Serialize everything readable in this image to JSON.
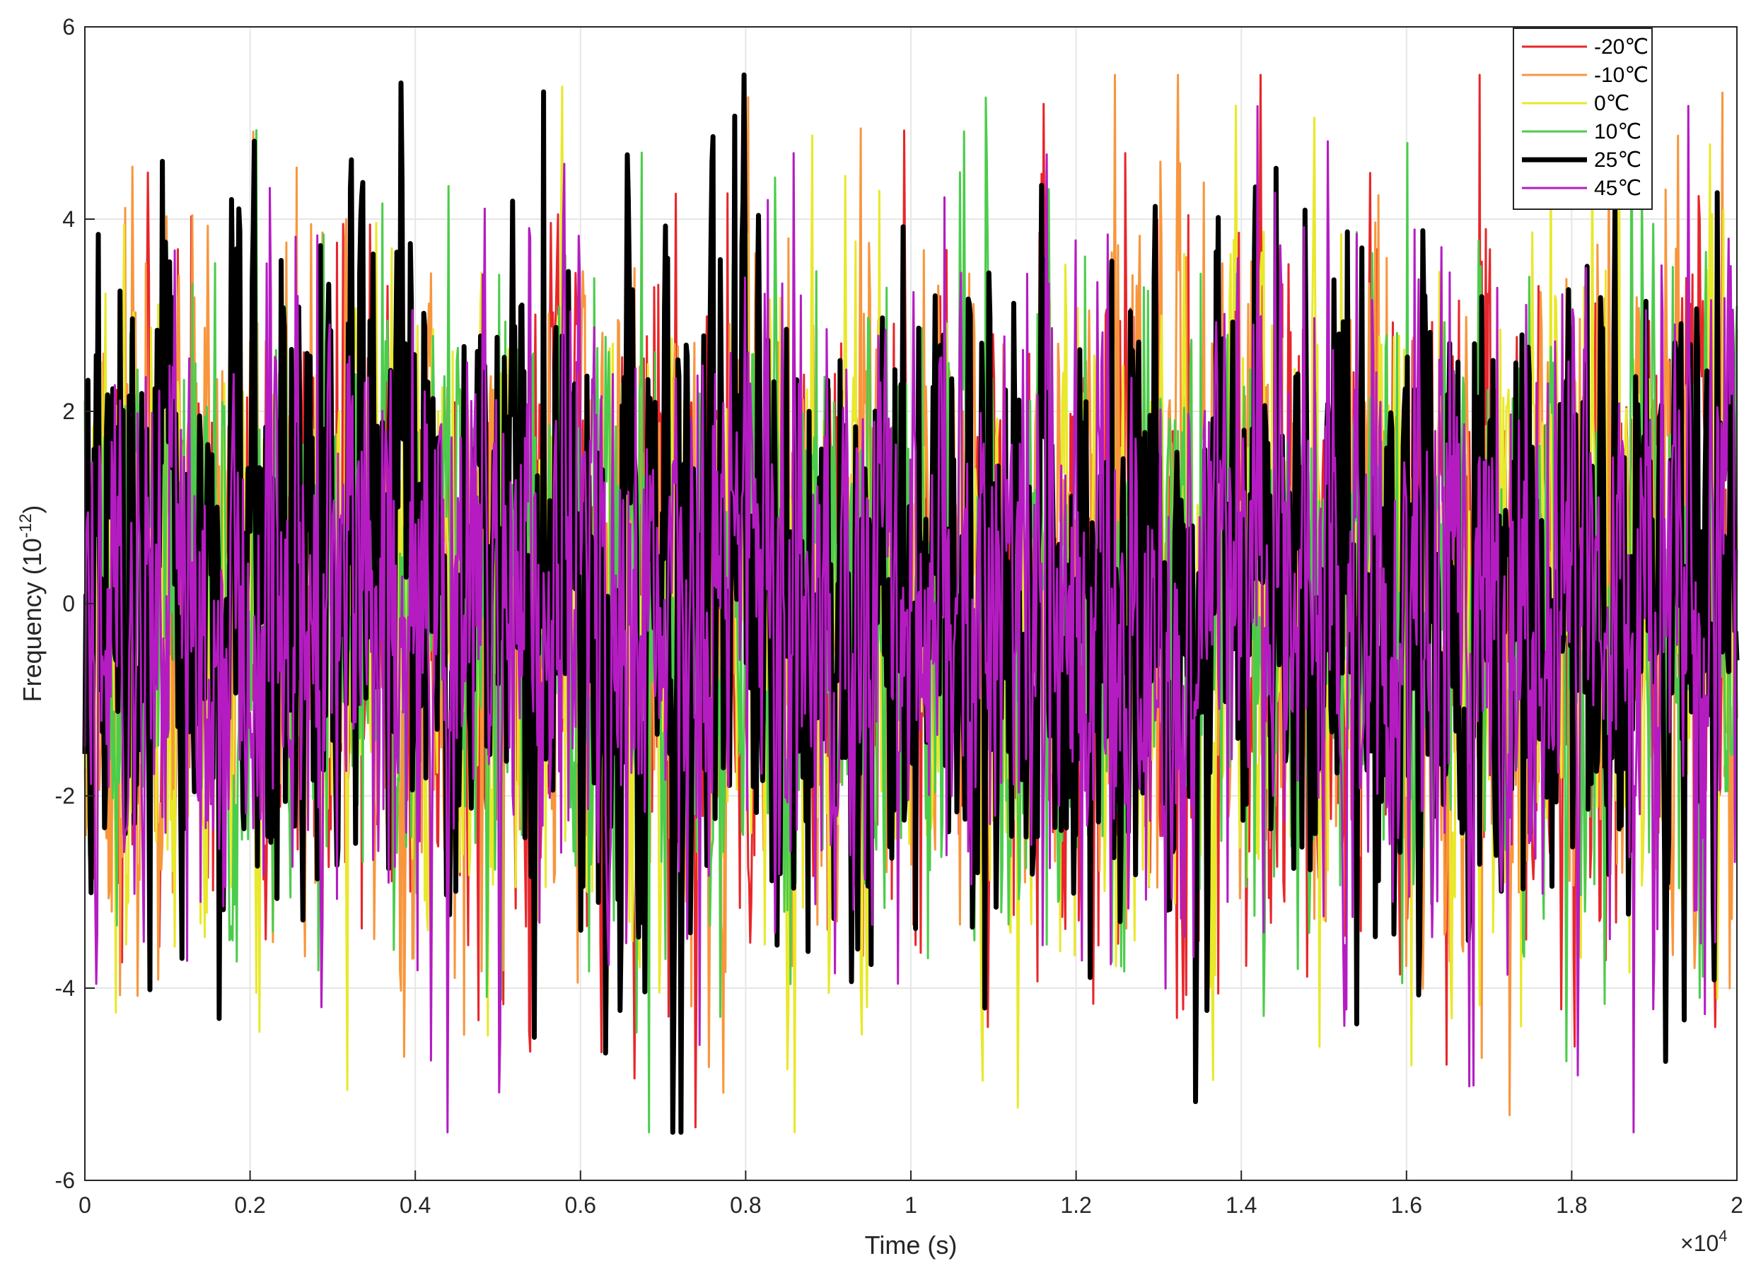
{
  "chart_data": {
    "type": "line",
    "xlabel": "Time (s)",
    "ylabel": "Frequency (10",
    "ylabel_superscript": "-12",
    "ylabel_close": ")",
    "x_multiplier": "×10",
    "x_multiplier_exp": "4",
    "xlim": [
      0,
      2
    ],
    "ylim": [
      -6,
      6
    ],
    "x_ticks": [
      0,
      0.2,
      0.4,
      0.6,
      0.8,
      1,
      1.2,
      1.4,
      1.6,
      1.8,
      2
    ],
    "x_tick_labels": [
      "0",
      "0.2",
      "0.4",
      "0.6",
      "0.8",
      "1",
      "1.2",
      "1.4",
      "1.6",
      "1.8",
      "2"
    ],
    "y_ticks": [
      -6,
      -4,
      -2,
      0,
      2,
      4,
      6
    ],
    "y_tick_labels": [
      "-6",
      "-4",
      "-2",
      "0",
      "2",
      "4",
      "6"
    ],
    "grid": true,
    "legend_position": "top-right",
    "samples_per_series": 1600,
    "noise_model": {
      "points": 1600,
      "spread": 1.55,
      "peak_range": [
        -5.5,
        5.5
      ]
    },
    "series": [
      {
        "name": "-20℃",
        "color": "#e8262a",
        "line_width": 3,
        "seed": 11
      },
      {
        "name": "-10℃",
        "color": "#f8963c",
        "line_width": 3,
        "seed": 23
      },
      {
        "name": "0℃",
        "color": "#e9e82a",
        "line_width": 3,
        "seed": 37
      },
      {
        "name": "10℃",
        "color": "#4ccc4c",
        "line_width": 3,
        "seed": 51
      },
      {
        "name": "25℃",
        "color": "#000000",
        "line_width": 7,
        "seed": 67
      },
      {
        "name": "45℃",
        "color": "#b41cc2",
        "line_width": 3,
        "seed": 89
      }
    ]
  }
}
